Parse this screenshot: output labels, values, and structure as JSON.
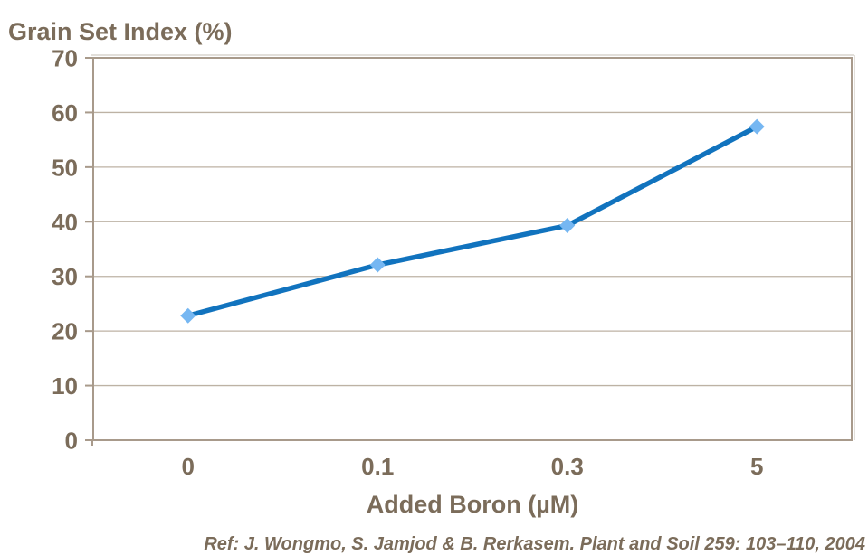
{
  "title": "Grain Set Index (%)",
  "citation": "Ref: J. Wongmo, S. Jamjod & B. Rerkasem. Plant and Soil 259: 103–110, 2004",
  "colors": {
    "text": "#7B6C5A",
    "axis": "#A89A8B",
    "axis_shadow": "#998C7C",
    "gridline": "#BDB2A4",
    "line": "#1173BE",
    "marker": "#76B7F2",
    "background": "#FFFFFF"
  },
  "chart_data": {
    "type": "line",
    "title": "Grain Set Index (%)",
    "xlabel": "Added Boron (µM)",
    "ylabel": "Grain Set Index (%)",
    "categories": [
      "0",
      "0.1",
      "0.3",
      "5"
    ],
    "series": [
      {
        "name": "Grain Set Index",
        "values": [
          22.8,
          32.1,
          39.3,
          57.4
        ]
      }
    ],
    "ylim": [
      0,
      70
    ],
    "yticks": [
      0,
      10,
      20,
      30,
      40,
      50,
      60,
      70
    ],
    "grid": true,
    "legend_position": "none",
    "marker_shape": "diamond"
  }
}
